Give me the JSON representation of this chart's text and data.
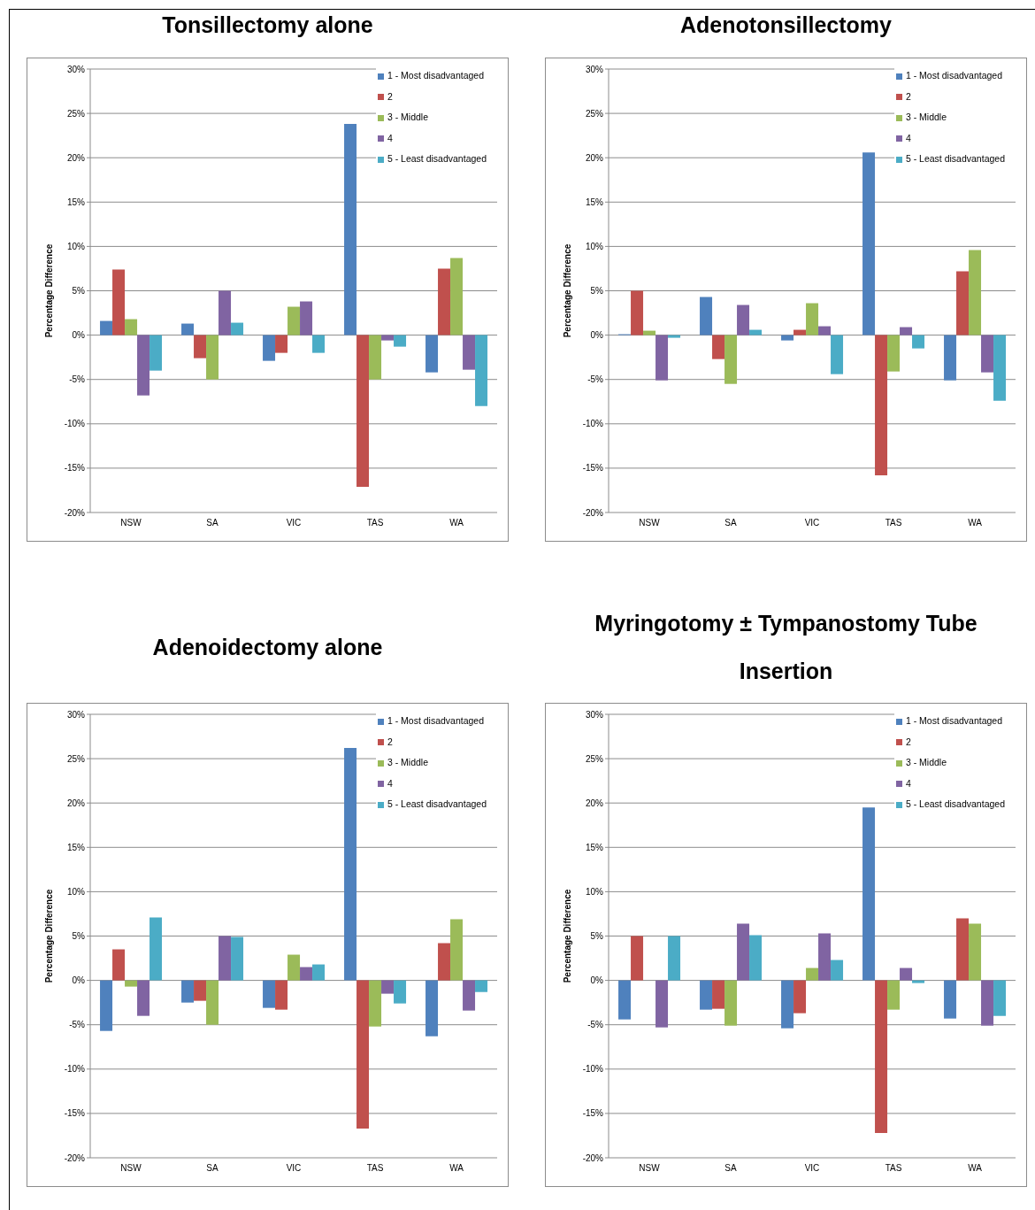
{
  "chart_data": [
    {
      "type": "bar",
      "title": "Tonsillectomy alone",
      "ylabel": "Percentage Difference",
      "categories": [
        "NSW",
        "SA",
        "VIC",
        "TAS",
        "WA"
      ],
      "series": [
        {
          "name": "1 - Most disadvantaged",
          "color": "#4f81bd",
          "values": [
            1.6,
            1.3,
            -2.9,
            23.8,
            -4.2
          ]
        },
        {
          "name": "2",
          "color": "#c0504d",
          "values": [
            7.4,
            -2.6,
            -2.0,
            -17.1,
            7.5
          ]
        },
        {
          "name": "3 - Middle",
          "color": "#9bbb59",
          "values": [
            1.8,
            -5.0,
            3.2,
            -5.0,
            8.7
          ]
        },
        {
          "name": "4",
          "color": "#8064a2",
          "values": [
            -6.8,
            5.0,
            3.8,
            -0.6,
            -3.9
          ]
        },
        {
          "name": "5 - Least disadvantaged",
          "color": "#4bacc6",
          "values": [
            -4.0,
            1.4,
            -2.0,
            -1.3,
            -8.0
          ]
        }
      ],
      "ylim": [
        -20,
        30
      ],
      "yticks": [
        {
          "value": -20,
          "label": "-20%"
        },
        {
          "value": -15,
          "label": "-15%"
        },
        {
          "value": -10,
          "label": "-10%"
        },
        {
          "value": -5,
          "label": "-5%"
        },
        {
          "value": 0,
          "label": "0%"
        },
        {
          "value": 5,
          "label": "5%"
        },
        {
          "value": 10,
          "label": "10%"
        },
        {
          "value": 15,
          "label": "15%"
        },
        {
          "value": 20,
          "label": "20%"
        },
        {
          "value": 25,
          "label": "25%"
        },
        {
          "value": 30,
          "label": "30%"
        }
      ],
      "grid": "y",
      "legend": "top right"
    },
    {
      "type": "bar",
      "title": "Adenotonsillectomy",
      "ylabel": "Percentage Difference",
      "categories": [
        "NSW",
        "SA",
        "VIC",
        "TAS",
        "WA"
      ],
      "series": [
        {
          "name": "1 - Most disadvantaged",
          "color": "#4f81bd",
          "values": [
            0.1,
            4.3,
            -0.6,
            20.6,
            -5.1
          ]
        },
        {
          "name": "2",
          "color": "#c0504d",
          "values": [
            5.0,
            -2.7,
            0.6,
            -15.8,
            7.2
          ]
        },
        {
          "name": "3 - Middle",
          "color": "#9bbb59",
          "values": [
            0.5,
            -5.5,
            3.6,
            -4.1,
            9.6
          ]
        },
        {
          "name": "4",
          "color": "#8064a2",
          "values": [
            -5.1,
            3.4,
            1.0,
            0.9,
            -4.2
          ]
        },
        {
          "name": "5 - Least disadvantaged",
          "color": "#4bacc6",
          "values": [
            -0.3,
            0.6,
            -4.4,
            -1.5,
            -7.4
          ]
        }
      ],
      "ylim": [
        -20,
        30
      ],
      "yticks": [
        {
          "value": -20,
          "label": "-20%"
        },
        {
          "value": -15,
          "label": "-15%"
        },
        {
          "value": -10,
          "label": "-10%"
        },
        {
          "value": -5,
          "label": "-5%"
        },
        {
          "value": 0,
          "label": "0%"
        },
        {
          "value": 5,
          "label": "5%"
        },
        {
          "value": 10,
          "label": "10%"
        },
        {
          "value": 15,
          "label": "15%"
        },
        {
          "value": 20,
          "label": "20%"
        },
        {
          "value": 25,
          "label": "25%"
        },
        {
          "value": 30,
          "label": "30%"
        }
      ],
      "grid": "y",
      "legend": "top right"
    },
    {
      "type": "bar",
      "title": "Adenoidectomy alone",
      "ylabel": "Percentage Difference",
      "categories": [
        "NSW",
        "SA",
        "VIC",
        "TAS",
        "WA"
      ],
      "series": [
        {
          "name": "1 - Most disadvantaged",
          "color": "#4f81bd",
          "values": [
            -5.7,
            -2.5,
            -3.1,
            26.2,
            -6.3
          ]
        },
        {
          "name": "2",
          "color": "#c0504d",
          "values": [
            3.5,
            -2.3,
            -3.3,
            -16.7,
            4.2
          ]
        },
        {
          "name": "3 - Middle",
          "color": "#9bbb59",
          "values": [
            -0.7,
            -5.0,
            2.9,
            -5.2,
            6.9
          ]
        },
        {
          "name": "4",
          "color": "#8064a2",
          "values": [
            -4.0,
            5.0,
            1.5,
            -1.5,
            -3.4
          ]
        },
        {
          "name": "5 - Least disadvantaged",
          "color": "#4bacc6",
          "values": [
            7.1,
            4.9,
            1.8,
            -2.6,
            -1.3
          ]
        }
      ],
      "ylim": [
        -20,
        30
      ],
      "yticks": [
        {
          "value": -20,
          "label": "-20%"
        },
        {
          "value": -15,
          "label": "-15%"
        },
        {
          "value": -10,
          "label": "-10%"
        },
        {
          "value": -5,
          "label": "-5%"
        },
        {
          "value": 0,
          "label": "0%"
        },
        {
          "value": 5,
          "label": "5%"
        },
        {
          "value": 10,
          "label": "10%"
        },
        {
          "value": 15,
          "label": "15%"
        },
        {
          "value": 20,
          "label": "20%"
        },
        {
          "value": 25,
          "label": "25%"
        },
        {
          "value": 30,
          "label": "30%"
        }
      ],
      "grid": "y",
      "legend": "top right"
    },
    {
      "type": "bar",
      "title": "Myringotomy ± Tympanostomy Tube Insertion",
      "ylabel": "Percentage Difference",
      "categories": [
        "NSW",
        "SA",
        "VIC",
        "TAS",
        "WA"
      ],
      "series": [
        {
          "name": "1 - Most disadvantaged",
          "color": "#4f81bd",
          "values": [
            -4.4,
            -3.3,
            -5.4,
            19.5,
            -4.3
          ]
        },
        {
          "name": "2",
          "color": "#c0504d",
          "values": [
            5.0,
            -3.2,
            -3.7,
            -17.2,
            7.0
          ]
        },
        {
          "name": "3 - Middle",
          "color": "#9bbb59",
          "values": [
            null,
            -5.1,
            1.4,
            -3.3,
            6.4
          ]
        },
        {
          "name": "4",
          "color": "#8064a2",
          "values": [
            -5.3,
            6.4,
            5.3,
            1.4,
            -5.1
          ]
        },
        {
          "name": "5 - Least disadvantaged",
          "color": "#4bacc6",
          "values": [
            5.0,
            5.1,
            2.3,
            -0.3,
            -4.0
          ]
        }
      ],
      "ylim": [
        -20,
        30
      ],
      "yticks": [
        {
          "value": -20,
          "label": "-20%"
        },
        {
          "value": -15,
          "label": "-15%"
        },
        {
          "value": -10,
          "label": "-10%"
        },
        {
          "value": -5,
          "label": "-5%"
        },
        {
          "value": 0,
          "label": "0%"
        },
        {
          "value": 5,
          "label": "5%"
        },
        {
          "value": 10,
          "label": "10%"
        },
        {
          "value": 15,
          "label": "15%"
        },
        {
          "value": 20,
          "label": "20%"
        },
        {
          "value": 25,
          "label": "25%"
        },
        {
          "value": 30,
          "label": "30%"
        }
      ],
      "grid": "y",
      "legend": "top right"
    }
  ]
}
